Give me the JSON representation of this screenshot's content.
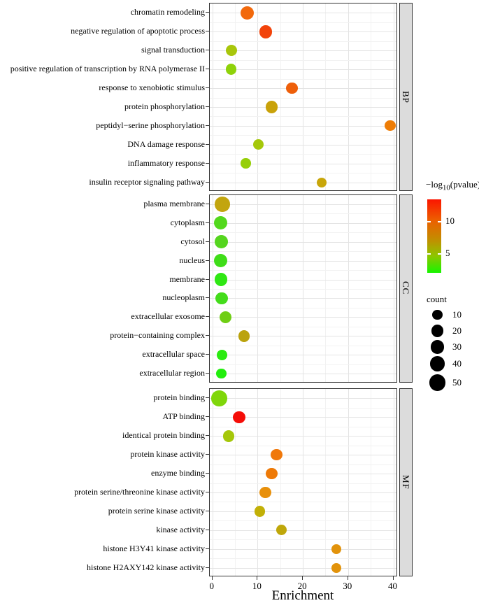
{
  "figure": {
    "legend": {
      "pvalue": {
        "title_prefix": "−log",
        "title_sub": "10",
        "title_suffix": "(pvalue)",
        "tick_labels": [
          "10",
          "5"
        ],
        "gradient_stops": [
          "#FB1500",
          "#ED5E00",
          "#C28E00",
          "#8DC600",
          "#17F400"
        ],
        "gradient_positions": [
          0,
          28,
          55,
          77,
          100
        ],
        "scale_top_value": 13.5,
        "scale_bottom_value": 2
      },
      "count": {
        "title": "count",
        "values": [
          10,
          20,
          30,
          40,
          50
        ]
      }
    },
    "colors": {
      "strip_bg": "#DCDCDC",
      "panel_border": "#333333",
      "grid_major": "#E4E4E4",
      "grid_minor": "#F2F2F2"
    }
  },
  "chart_data": {
    "type": "scatter",
    "title": "",
    "xlabel": "Enrichment",
    "ylabel": "",
    "xlim": [
      -1,
      41.5
    ],
    "xticks": [
      0,
      10,
      20,
      30,
      40
    ],
    "grid": true,
    "legend_position": "right",
    "color_scale": {
      "low": "#00FF00",
      "high": "#FF0000",
      "variable": "-log10(pvalue)"
    },
    "size_variable": "count",
    "panels": [
      {
        "name": "BP",
        "rows": [
          {
            "label": "chromatin remodeling",
            "enrichment": 7.7,
            "count": 28,
            "neglog10_pvalue": 11.5,
            "color": "#F2690C"
          },
          {
            "label": "negative regulation of apoptotic process",
            "enrichment": 11.8,
            "count": 26,
            "neglog10_pvalue": 12.3,
            "color": "#F2430A"
          },
          {
            "label": "signal transduction",
            "enrichment": 4.2,
            "count": 16,
            "neglog10_pvalue": 6.2,
            "color": "#A8C60B"
          },
          {
            "label": "positive regulation of transcription by RNA polymerase II",
            "enrichment": 4.1,
            "count": 14,
            "neglog10_pvalue": 5.4,
            "color": "#8FD20A"
          },
          {
            "label": "response to xenobiotic stimulus",
            "enrichment": 17.6,
            "count": 18,
            "neglog10_pvalue": 11.4,
            "color": "#EE5F0A"
          },
          {
            "label": "protein phosphorylation",
            "enrichment": 13.1,
            "count": 21,
            "neglog10_pvalue": 8.2,
            "color": "#C9A20A"
          },
          {
            "label": "peptidyl−serine phosphorylation",
            "enrichment": 39.3,
            "count": 13,
            "neglog10_pvalue": 10.8,
            "color": "#EE7D06"
          },
          {
            "label": "DNA damage response",
            "enrichment": 10.1,
            "count": 13,
            "neglog10_pvalue": 6.3,
            "color": "#A5C80A"
          },
          {
            "label": "inflammatory response",
            "enrichment": 7.4,
            "count": 11,
            "neglog10_pvalue": 5.6,
            "color": "#96CF08"
          },
          {
            "label": "insulin receptor signaling pathway",
            "enrichment": 24.2,
            "count": 10,
            "neglog10_pvalue": 7.9,
            "color": "#C8A60A"
          }
        ]
      },
      {
        "name": "CC",
        "rows": [
          {
            "label": "plasma membrane",
            "enrichment": 2.2,
            "count": 40,
            "neglog10_pvalue": 7.6,
            "color": "#C2A50E"
          },
          {
            "label": "cytoplasm",
            "enrichment": 1.8,
            "count": 28,
            "neglog10_pvalue": 4.1,
            "color": "#52D81C"
          },
          {
            "label": "cytosol",
            "enrichment": 2.0,
            "count": 26,
            "neglog10_pvalue": 4.2,
            "color": "#55D51E"
          },
          {
            "label": "nucleus",
            "enrichment": 1.8,
            "count": 28,
            "neglog10_pvalue": 3.8,
            "color": "#3FDD18"
          },
          {
            "label": "membrane",
            "enrichment": 1.9,
            "count": 25,
            "neglog10_pvalue": 3.4,
            "color": "#2FE713"
          },
          {
            "label": "nucleoplasm",
            "enrichment": 2.1,
            "count": 22,
            "neglog10_pvalue": 3.9,
            "color": "#44DC1B"
          },
          {
            "label": "extracellular exosome",
            "enrichment": 2.9,
            "count": 21,
            "neglog10_pvalue": 4.8,
            "color": "#6FCE14"
          },
          {
            "label": "protein−containing complex",
            "enrichment": 7.0,
            "count": 18,
            "neglog10_pvalue": 7.4,
            "color": "#BBA30D"
          },
          {
            "label": "extracellular space",
            "enrichment": 2.1,
            "count": 12,
            "neglog10_pvalue": 3.2,
            "color": "#2BEB11"
          },
          {
            "label": "extracellular region",
            "enrichment": 2.0,
            "count": 11,
            "neglog10_pvalue": 3.0,
            "color": "#22EE0D"
          }
        ]
      },
      {
        "name": "MF",
        "rows": [
          {
            "label": "protein binding",
            "enrichment": 1.5,
            "count": 45,
            "neglog10_pvalue": 5.0,
            "color": "#7FD60A"
          },
          {
            "label": "ATP binding",
            "enrichment": 5.9,
            "count": 22,
            "neglog10_pvalue": 13.2,
            "color": "#F50D08"
          },
          {
            "label": "identical protein binding",
            "enrichment": 3.6,
            "count": 18,
            "neglog10_pvalue": 6.1,
            "color": "#A5C70A"
          },
          {
            "label": "protein kinase activity",
            "enrichment": 14.2,
            "count": 18,
            "neglog10_pvalue": 11.0,
            "color": "#F0780A"
          },
          {
            "label": "enzyme binding",
            "enrichment": 13.1,
            "count": 18,
            "neglog10_pvalue": 11.0,
            "color": "#EE7A07"
          },
          {
            "label": "protein serine/threonine kinase activity",
            "enrichment": 11.7,
            "count": 18,
            "neglog10_pvalue": 10.3,
            "color": "#E8900B"
          },
          {
            "label": "protein serine kinase activity",
            "enrichment": 10.5,
            "count": 14,
            "neglog10_pvalue": 7.7,
            "color": "#C2B007"
          },
          {
            "label": "kinase activity",
            "enrichment": 15.3,
            "count": 14,
            "neglog10_pvalue": 7.8,
            "color": "#BFA70A"
          },
          {
            "label": "histone H3Y41 kinase activity",
            "enrichment": 27.4,
            "count": 10,
            "neglog10_pvalue": 9.8,
            "color": "#E2930B"
          },
          {
            "label": "histone H2AXY142 kinase activity",
            "enrichment": 27.4,
            "count": 10,
            "neglog10_pvalue": 9.8,
            "color": "#E2930B"
          }
        ]
      }
    ]
  }
}
